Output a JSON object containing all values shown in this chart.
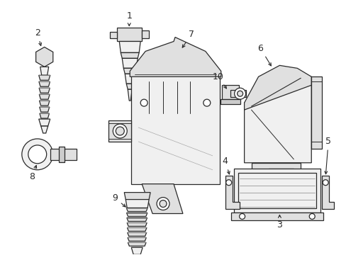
{
  "bg_color": "#ffffff",
  "line_color": "#2a2a2a",
  "figsize": [
    4.89,
    3.6
  ],
  "dpi": 100,
  "lw": 0.9
}
